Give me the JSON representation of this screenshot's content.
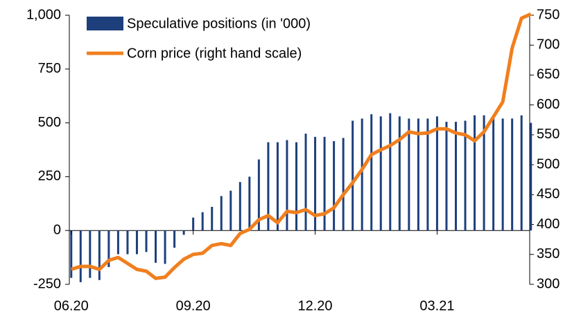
{
  "chart_data": {
    "type": "bar_line",
    "categories": [
      "06.20",
      null,
      null,
      null,
      null,
      null,
      null,
      null,
      null,
      null,
      null,
      null,
      null,
      "09.20",
      null,
      null,
      null,
      null,
      null,
      null,
      null,
      null,
      null,
      null,
      null,
      null,
      "12.20",
      null,
      null,
      null,
      null,
      null,
      null,
      null,
      null,
      null,
      null,
      null,
      null,
      "03.21",
      null,
      null,
      null,
      null,
      null,
      null,
      null,
      null,
      null,
      null
    ],
    "series": [
      {
        "name": "Speculative positions (in '000)",
        "type": "bar",
        "color": "#1d3f7c",
        "values": [
          -220,
          -240,
          -220,
          -230,
          -170,
          -110,
          -110,
          -110,
          -100,
          -150,
          -155,
          -80,
          -20,
          60,
          85,
          110,
          160,
          185,
          225,
          250,
          330,
          410,
          410,
          420,
          410,
          450,
          435,
          435,
          415,
          430,
          510,
          520,
          540,
          530,
          545,
          530,
          520,
          520,
          520,
          530,
          505,
          505,
          510,
          535,
          535,
          530,
          520,
          520,
          535,
          500
        ]
      },
      {
        "name": "Corn price (right hand scale)",
        "type": "line",
        "axis": "y2",
        "color": "#f07f1e",
        "values": [
          325,
          330,
          330,
          325,
          340,
          345,
          335,
          325,
          322,
          310,
          312,
          328,
          342,
          350,
          352,
          365,
          368,
          365,
          385,
          392,
          408,
          415,
          403,
          422,
          420,
          425,
          415,
          418,
          428,
          450,
          470,
          492,
          517,
          525,
          532,
          542,
          555,
          552,
          553,
          560,
          560,
          553,
          550,
          540,
          555,
          580,
          605,
          695,
          745,
          752
        ]
      }
    ],
    "ylim": [
      -250,
      1000
    ],
    "yticks": [
      -250,
      0,
      250,
      500,
      750,
      {
        "value": 1000,
        "label": "1,000"
      }
    ],
    "y2lim": [
      300,
      750
    ],
    "y2ticks": [
      300,
      350,
      400,
      450,
      500,
      550,
      600,
      650,
      700,
      750
    ]
  }
}
